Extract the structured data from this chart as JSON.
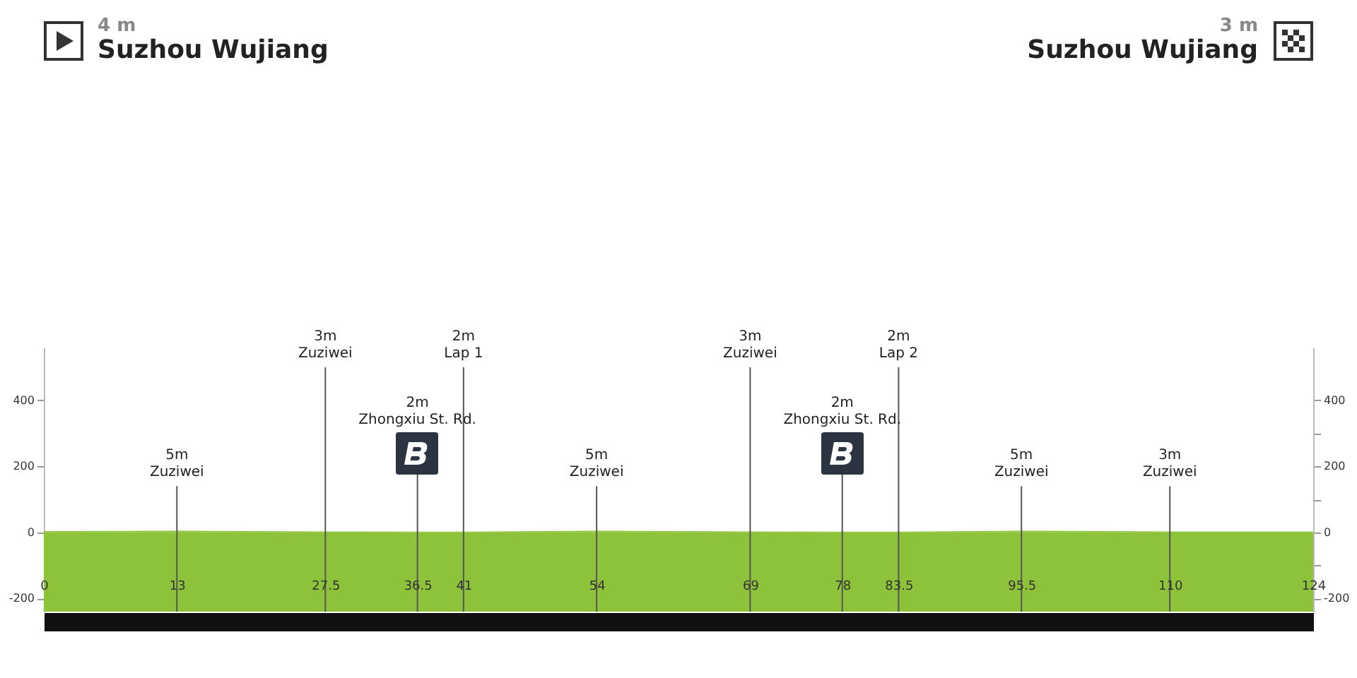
{
  "chart_data": {
    "type": "area",
    "x": [
      0,
      13,
      27.5,
      36.5,
      41,
      54,
      69,
      78,
      83.5,
      95.5,
      110,
      124
    ],
    "series": [
      {
        "color": "#8cc33a",
        "values": [
          4,
          5,
          3,
          2,
          2,
          5,
          3,
          2,
          2,
          5,
          3,
          3
        ]
      }
    ],
    "xlim": [
      0,
      124
    ],
    "xticks": [
      0,
      13,
      27.5,
      36.5,
      41,
      54,
      69,
      78,
      83.5,
      95.5,
      110,
      124
    ],
    "ylim": [
      -240,
      560
    ],
    "yticks": [
      -200,
      {
        "value": -100,
        "label": null
      },
      0,
      {
        "value": 100,
        "label": null
      },
      200,
      {
        "value": 300,
        "label": null
      },
      400
    ],
    "y2lim": [
      -240,
      560
    ],
    "y2ticks": [
      -200,
      {
        "value": -100,
        "label": null
      },
      0,
      {
        "value": 100,
        "label": null
      },
      200,
      {
        "value": 300,
        "label": null
      },
      400
    ],
    "annotations": [
      "4 m",
      "Suzhou Wujiang",
      "3 m",
      "Suzhou Wujiang"
    ],
    "bands": [
      {
        "axis": "y",
        "from": -240,
        "to": 0,
        "color": "#8cc33a"
      }
    ],
    "ref_lines": [
      {
        "axis": "x",
        "value": 13,
        "label": "5m\nZuziwei"
      },
      {
        "axis": "x",
        "value": 27.5,
        "label": "3m\nZuziwei"
      },
      {
        "axis": "x",
        "value": 36.5,
        "label": "2m\nZhongxiu St. Rd."
      },
      {
        "axis": "x",
        "value": 41,
        "label": "2m\nLap 1"
      },
      {
        "axis": "x",
        "value": 54,
        "label": "5m\nZuziwei"
      },
      {
        "axis": "x",
        "value": 69,
        "label": "3m\nZuziwei"
      },
      {
        "axis": "x",
        "value": 78,
        "label": "2m\nZhongxiu St. Rd."
      },
      {
        "axis": "x",
        "value": 83.5,
        "label": "2m\nLap 2"
      },
      {
        "axis": "x",
        "value": 95.5,
        "label": "5m\nZuziwei"
      },
      {
        "axis": "x",
        "value": 110,
        "label": "3m\nZuziwei"
      }
    ]
  }
}
